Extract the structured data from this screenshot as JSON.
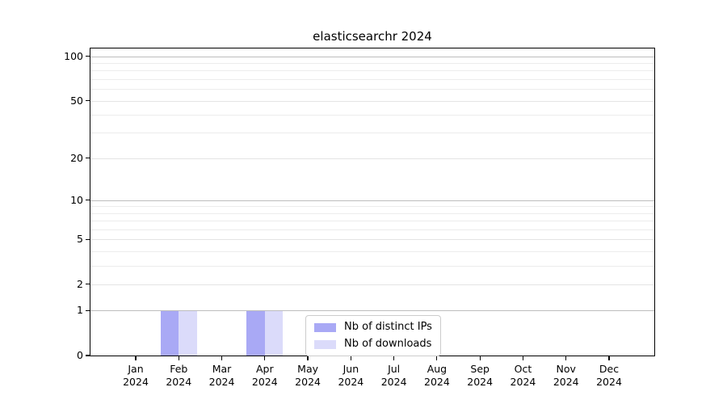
{
  "chart_data": {
    "type": "bar",
    "title": "elasticsearchr 2024",
    "xlabel": "",
    "ylabel": "",
    "yscale": "log1p",
    "ylim": [
      0,
      113
    ],
    "grid": true,
    "y_ticks": [
      0,
      1,
      2,
      5,
      10,
      20,
      50,
      100
    ],
    "decade_gridlines": [
      1,
      10,
      100
    ],
    "minor_gridlines": [
      3,
      4,
      6,
      7,
      8,
      9,
      30,
      40,
      60,
      70,
      80,
      90
    ],
    "categories": [
      "Jan 2024",
      "Feb 2024",
      "Mar 2024",
      "Apr 2024",
      "May 2024",
      "Jun 2024",
      "Jul 2024",
      "Aug 2024",
      "Sep 2024",
      "Oct 2024",
      "Nov 2024",
      "Dec 2024"
    ],
    "series": [
      {
        "name": "Nb of distinct IPs",
        "color": "#a9a9f5",
        "values": [
          0,
          1,
          0,
          1,
          0,
          0,
          0,
          0,
          0,
          0,
          0,
          0
        ]
      },
      {
        "name": "Nb of downloads",
        "color": "#dbdbfa",
        "values": [
          0,
          1,
          0,
          1,
          0,
          0,
          0,
          0,
          0,
          0,
          0,
          0
        ]
      }
    ],
    "legend_position": "lower center",
    "colors": {
      "spine": "#000000",
      "decade_grid": "#bdbdbd",
      "minor_grid": "#ececec",
      "text": "#000000",
      "background": "#ffffff"
    }
  }
}
